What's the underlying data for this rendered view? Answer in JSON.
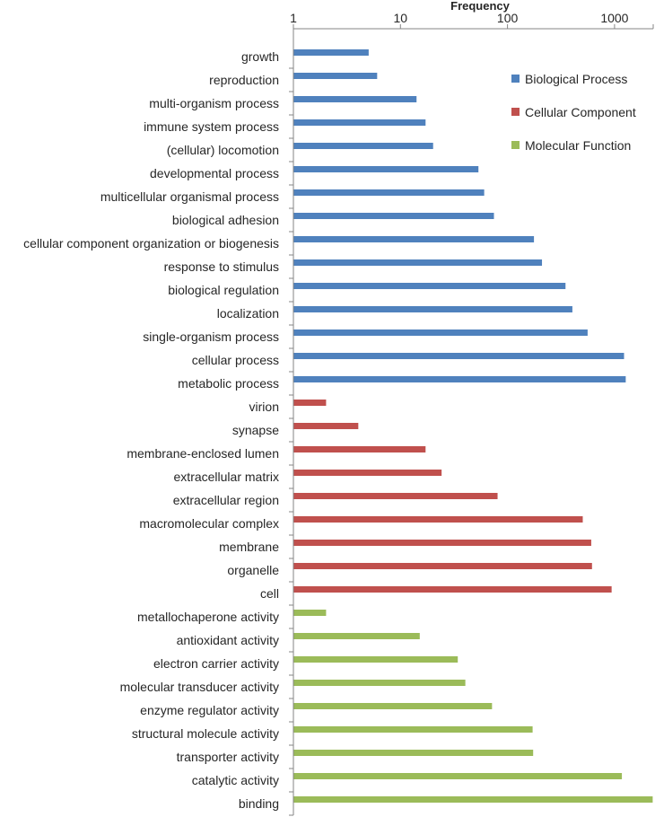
{
  "chart_data": {
    "type": "bar",
    "orientation": "horizontal",
    "x_scale": "log",
    "xlabel": "Frequency",
    "xlim": [
      1,
      2500
    ],
    "x_ticks": [
      1,
      10,
      100,
      1000
    ],
    "x_tick_labels": [
      "1",
      "10",
      "100",
      "1000"
    ],
    "grid": false,
    "legend_position": "top-right",
    "categories": [
      "growth",
      "reproduction",
      "multi-organism process",
      "immune system process",
      "(cellular) locomotion",
      "developmental process",
      "multicellular organismal process",
      "biological adhesion",
      "cellular component organization or biogenesis",
      "response to stimulus",
      "biological regulation",
      "localization",
      "single-organism process",
      "cellular process",
      "metabolic process",
      "virion",
      "synapse",
      "membrane-enclosed lumen",
      "extracellular matrix",
      "extracellular region",
      "macromolecular complex",
      "membrane",
      "organelle",
      "cell",
      "metallochaperone activity",
      "antioxidant activity",
      "electron carrier activity",
      "molecular transducer activity",
      "enzyme regulator activity",
      "structural molecule activity",
      "transporter activity",
      "catalytic activity",
      "binding"
    ],
    "series": [
      {
        "name": "Biological Process",
        "color": "#4F81BD",
        "values": [
          5,
          6,
          14,
          17,
          20,
          53,
          60,
          74,
          175,
          208,
          345,
          400,
          555,
          1215,
          1260,
          null,
          null,
          null,
          null,
          null,
          null,
          null,
          null,
          null,
          null,
          null,
          null,
          null,
          null,
          null,
          null,
          null,
          null
        ]
      },
      {
        "name": "Cellular Component",
        "color": "#C0504D",
        "values": [
          null,
          null,
          null,
          null,
          null,
          null,
          null,
          null,
          null,
          null,
          null,
          null,
          null,
          null,
          null,
          2,
          4,
          17,
          24,
          80,
          500,
          600,
          610,
          930,
          null,
          null,
          null,
          null,
          null,
          null,
          null,
          null,
          null
        ]
      },
      {
        "name": "Molecular Function",
        "color": "#9BBB59",
        "values": [
          null,
          null,
          null,
          null,
          null,
          null,
          null,
          null,
          null,
          null,
          null,
          null,
          null,
          null,
          null,
          null,
          null,
          null,
          null,
          null,
          null,
          null,
          null,
          null,
          2,
          15,
          34,
          40,
          71,
          170,
          172,
          1160,
          2250
        ]
      }
    ]
  }
}
